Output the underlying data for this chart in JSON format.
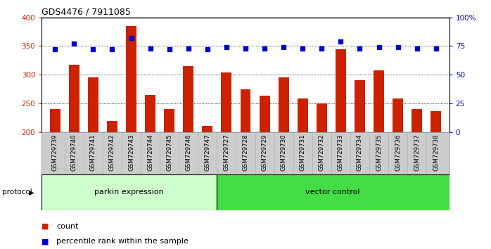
{
  "title": "GDS4476 / 7911085",
  "categories": [
    "GSM729739",
    "GSM729740",
    "GSM729741",
    "GSM729742",
    "GSM729743",
    "GSM729744",
    "GSM729745",
    "GSM729746",
    "GSM729747",
    "GSM729727",
    "GSM729728",
    "GSM729729",
    "GSM729730",
    "GSM729731",
    "GSM729732",
    "GSM729733",
    "GSM729734",
    "GSM729735",
    "GSM729736",
    "GSM729737",
    "GSM729738"
  ],
  "counts": [
    240,
    317,
    295,
    219,
    385,
    265,
    240,
    315,
    211,
    304,
    274,
    263,
    295,
    258,
    250,
    345,
    291,
    308,
    258,
    240,
    236
  ],
  "percentiles": [
    72,
    77,
    72,
    72,
    82,
    73,
    72,
    73,
    72,
    74,
    73,
    73,
    74,
    73,
    73,
    79,
    73,
    74,
    74,
    73,
    73
  ],
  "parkin_count": 9,
  "vector_count": 12,
  "parkin_label": "parkin expression",
  "vector_label": "vector control",
  "protocol_label": "protocol",
  "count_label": "count",
  "percentile_label": "percentile rank within the sample",
  "bar_color": "#cc2200",
  "dot_color": "#0000cc",
  "left_ylim": [
    200,
    400
  ],
  "right_ylim": [
    0,
    100
  ],
  "left_yticks": [
    200,
    250,
    300,
    350,
    400
  ],
  "right_yticks": [
    0,
    25,
    50,
    75,
    100
  ],
  "right_yticklabels": [
    "0",
    "25",
    "50",
    "75",
    "100%"
  ],
  "parkin_bg": "#ccffcc",
  "vector_bg": "#44dd44",
  "bar_bottom": 200,
  "gridlines": [
    250,
    300,
    350
  ]
}
